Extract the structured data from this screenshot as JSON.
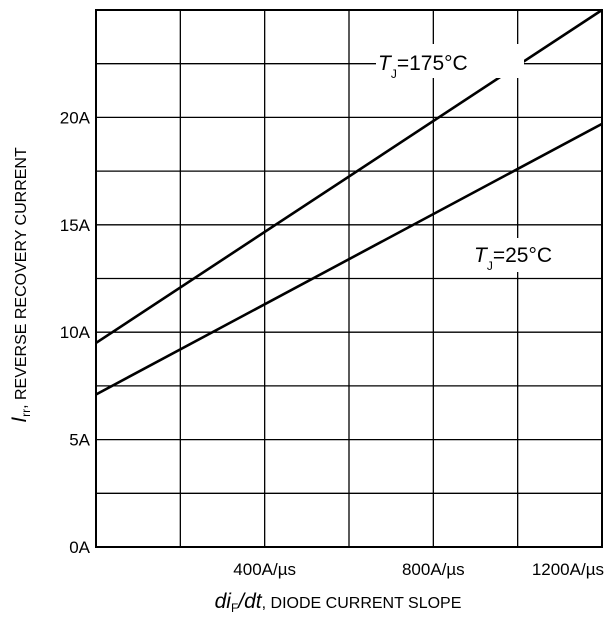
{
  "chart_data": {
    "type": "line",
    "title": "",
    "x_axis": {
      "symbol": "di",
      "subscript": "F",
      "symbol_tail": "/dt",
      "text": ", DIODE CURRENT SLOPE",
      "range": [
        0,
        1200
      ],
      "unit": "A/µs",
      "gridlines": [
        200,
        400,
        600,
        800,
        1000,
        1200
      ],
      "tick_labels": [
        {
          "value": 400,
          "label": "400A/µs"
        },
        {
          "value": 800,
          "label": "800A/µs"
        },
        {
          "value": 1200,
          "label": "1200A/µs"
        }
      ]
    },
    "y_axis": {
      "symbol": "I",
      "subscript": "rr",
      "text": ",  REVERSE RECOVERY CURRENT",
      "range": [
        0,
        25
      ],
      "unit": "A",
      "gridlines": [
        2.5,
        5,
        7.5,
        10,
        12.5,
        15,
        17.5,
        20,
        22.5
      ],
      "tick_labels": [
        {
          "value": 0,
          "label": "0A"
        },
        {
          "value": 5,
          "label": "5A"
        },
        {
          "value": 10,
          "label": "10A"
        },
        {
          "value": 15,
          "label": "15A"
        },
        {
          "value": 20,
          "label": "20A"
        }
      ]
    },
    "grid": true,
    "series": [
      {
        "name_symbol": "T",
        "name_subscript": "J",
        "name_text": "=175°C",
        "x": [
          0,
          1200
        ],
        "y": [
          9.5,
          25.5
        ]
      },
      {
        "name_symbol": "T",
        "name_subscript": "J",
        "name_text": "=25°C",
        "x": [
          0,
          1200
        ],
        "y": [
          7.1,
          19.7
        ]
      }
    ]
  }
}
